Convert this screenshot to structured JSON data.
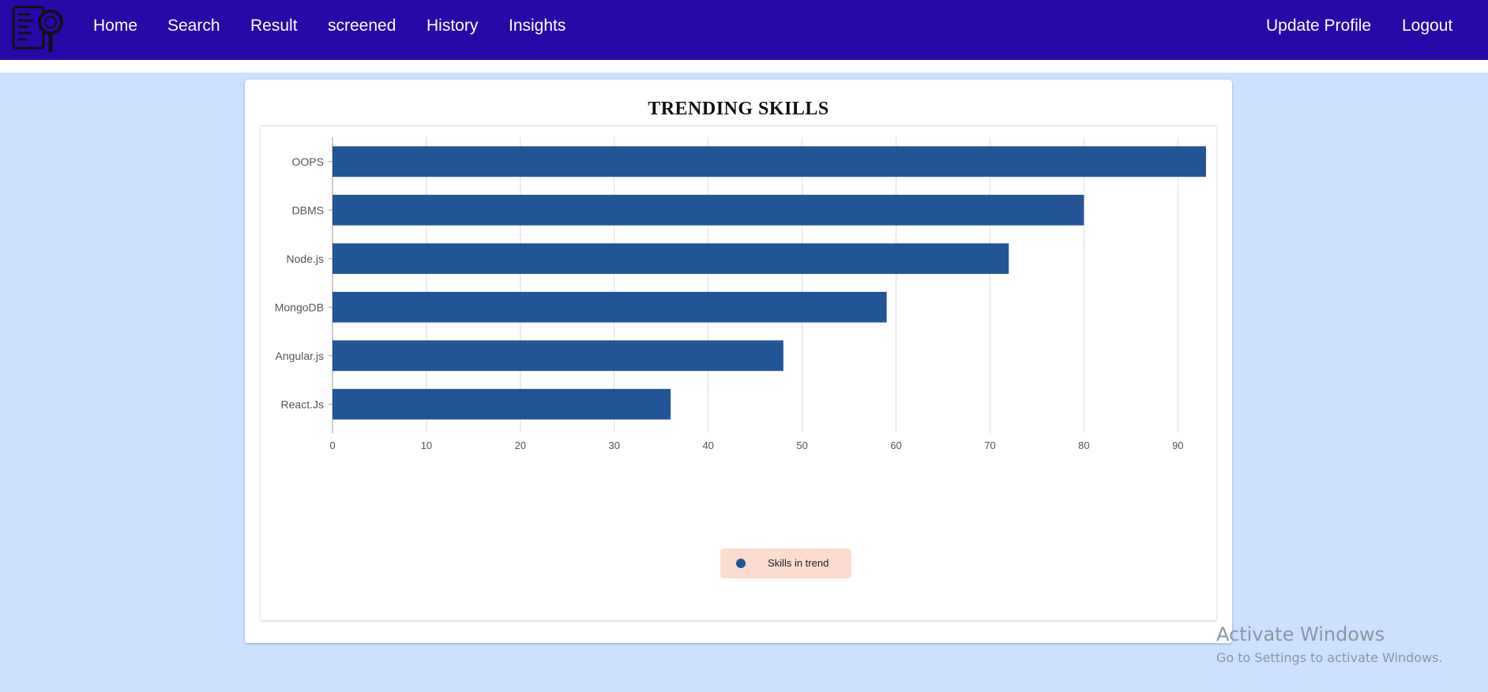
{
  "nav": {
    "left_links": [
      "Home",
      "Search",
      "Result",
      "screened",
      "History",
      "Insights"
    ],
    "right_links": [
      "Update Profile",
      "Logout"
    ],
    "logo_icon": "resume-search-logo-icon"
  },
  "colors": {
    "navbar": "#2709a8",
    "page_background": "#cce0ff",
    "bar": "#225596",
    "legend_background": "#fddcd0"
  },
  "chart_data": {
    "type": "bar",
    "orientation": "horizontal",
    "title": "TRENDING SKILLS",
    "categories": [
      "OOPS",
      "DBMS",
      "Node.js",
      "MongoDB",
      "Angular.js",
      "React.Js"
    ],
    "series": [
      {
        "name": "Skills in trend",
        "values": [
          93,
          80,
          72,
          59,
          48,
          36
        ]
      }
    ],
    "xticks": [
      0,
      10,
      20,
      30,
      40,
      50,
      60,
      70,
      80,
      90
    ],
    "xlim": [
      0,
      93
    ],
    "grid": true,
    "legend_position": "bottom-center"
  },
  "watermark": {
    "title": "Activate Windows",
    "subtitle": "Go to Settings to activate Windows."
  }
}
